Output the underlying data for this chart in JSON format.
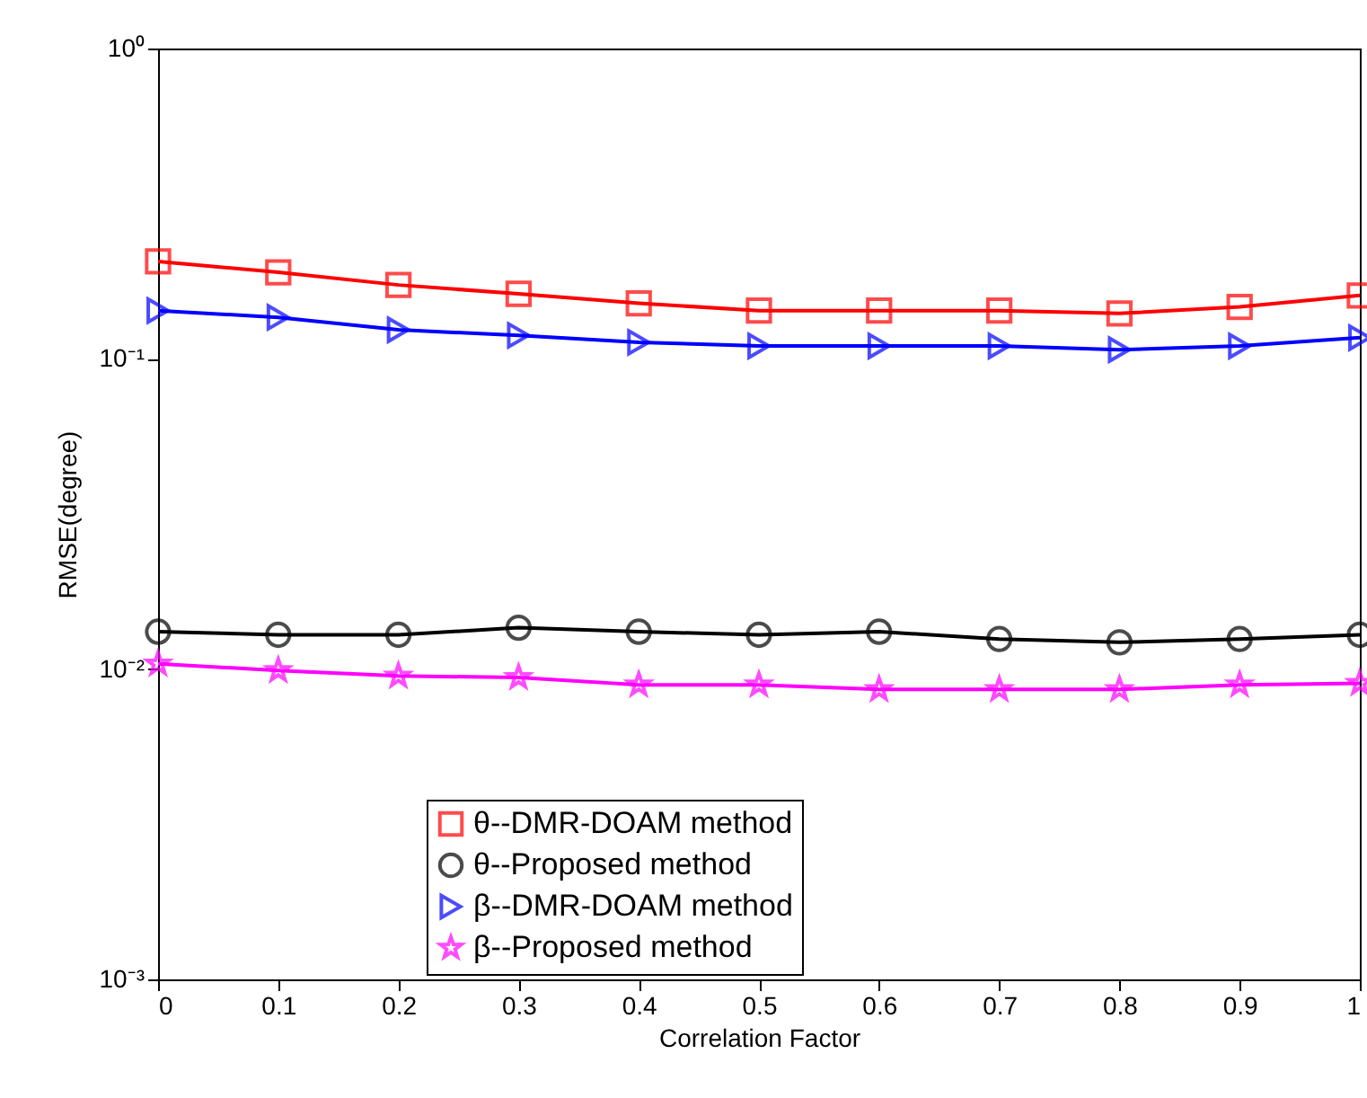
{
  "chart_data": {
    "type": "line",
    "xlabel": "Correlation Factor",
    "ylabel": "RMSE(degree)",
    "x": [
      0,
      0.1,
      0.2,
      0.3,
      0.4,
      0.5,
      0.6,
      0.7,
      0.8,
      0.9,
      1
    ],
    "series": [
      {
        "name": "θ--DMR-DOAM method",
        "color": "#ff0000",
        "marker": "square",
        "values": [
          0.206,
          0.19,
          0.173,
          0.162,
          0.151,
          0.143,
          0.143,
          0.143,
          0.14,
          0.147,
          0.16
        ]
      },
      {
        "name": "θ--Proposed method",
        "color": "#000000",
        "marker": "circle",
        "values": [
          0.0132,
          0.0129,
          0.0129,
          0.0136,
          0.0132,
          0.0129,
          0.0132,
          0.0125,
          0.0122,
          0.0125,
          0.0129
        ]
      },
      {
        "name": "β--DMR-DOAM method",
        "color": "#0000ff",
        "marker": "triangle",
        "values": [
          0.143,
          0.136,
          0.124,
          0.119,
          0.113,
          0.11,
          0.11,
          0.11,
          0.107,
          0.11,
          0.117
        ]
      },
      {
        "name": "β--Proposed method",
        "color": "#ff00ff",
        "marker": "star",
        "values": [
          0.0104,
          0.0099,
          0.0095,
          0.0094,
          0.0089,
          0.0089,
          0.0086,
          0.0086,
          0.0086,
          0.0089,
          0.009
        ]
      }
    ],
    "log": "y",
    "xlim": [
      0,
      1
    ],
    "xticks": [
      0,
      0.1,
      0.2,
      0.3,
      0.4,
      0.5,
      0.6,
      0.7,
      0.8,
      0.9,
      1
    ],
    "ylim": [
      0.001,
      1
    ],
    "yticks": [
      {
        "value": 0.001,
        "label": "10⁻³"
      },
      {
        "value": 0.01,
        "label": "10⁻²"
      },
      {
        "value": 0.1,
        "label": "10⁻¹"
      },
      {
        "value": 1,
        "label": "10⁰"
      }
    ],
    "legend": "bottom",
    "line_style": "solid"
  }
}
